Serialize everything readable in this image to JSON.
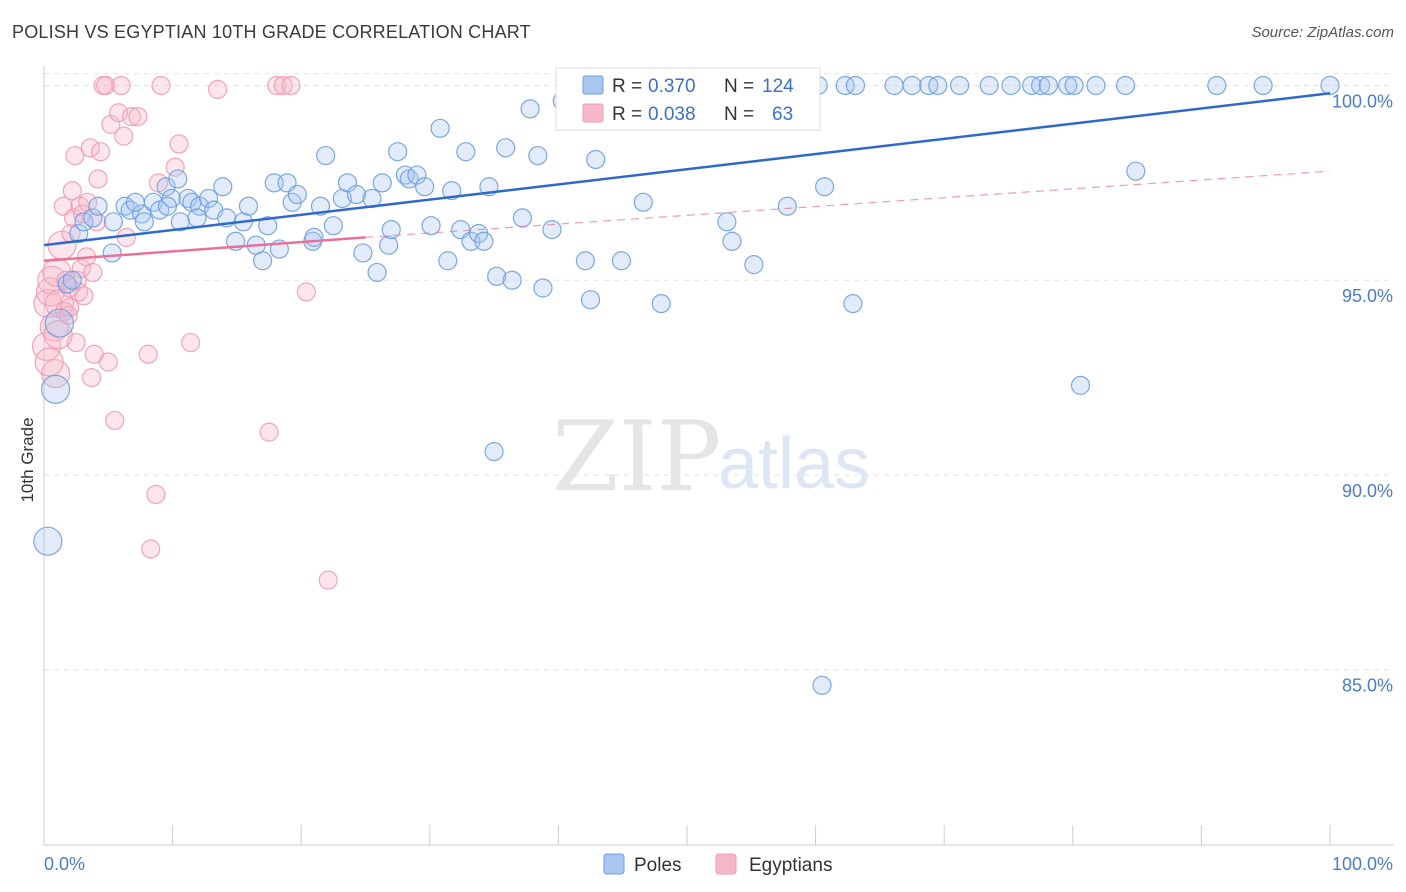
{
  "title": "POLISH VS EGYPTIAN 10TH GRADE CORRELATION CHART",
  "source": "Source: ZipAtlas.com",
  "watermark": {
    "zip": "ZIP",
    "atlas": "atlas"
  },
  "legend": {
    "rows": [
      {
        "r_label": "R =",
        "r_value": "0.370",
        "n_label": "N =",
        "n_value": "124",
        "color": "#a9c6f0"
      },
      {
        "r_label": "R =",
        "r_value": "0.038",
        "n_label": "N =",
        "n_value": "63",
        "color": "#f6b8c9"
      }
    ]
  },
  "bottom_legend": [
    {
      "label": "Poles",
      "color": "#a9c6f0"
    },
    {
      "label": "Egyptians",
      "color": "#f6b8c9"
    }
  ],
  "chart_data": {
    "type": "scatter",
    "title": "POLISH VS EGYPTIAN 10TH GRADE CORRELATION CHART",
    "xlabel": "",
    "ylabel": "10th Grade",
    "xlim": [
      0,
      100
    ],
    "ylim": [
      80.5,
      100.5
    ],
    "x_tick_labels": [
      "0.0%",
      "100.0%"
    ],
    "y_ticks": [
      85,
      90,
      95,
      100
    ],
    "y_tick_labels": [
      "85.0%",
      "90.0%",
      "95.0%",
      "100.0%"
    ],
    "grid": true,
    "series": [
      {
        "name": "Poles",
        "color": "#6f9fe0",
        "trend": {
          "x": [
            0,
            100
          ],
          "y": [
            95.9,
            99.8
          ],
          "color": "#2d6ac9"
        },
        "points": [
          [
            0.3,
            88.3
          ],
          [
            0.9,
            92.2
          ],
          [
            1.2,
            93.9
          ],
          [
            1.8,
            94.9
          ],
          [
            2.2,
            95.0
          ],
          [
            2.7,
            96.2
          ],
          [
            3.1,
            96.5
          ],
          [
            3.8,
            96.6
          ],
          [
            4.2,
            96.9
          ],
          [
            5.4,
            96.5
          ],
          [
            5.3,
            95.7
          ],
          [
            6.3,
            96.9
          ],
          [
            6.7,
            96.8
          ],
          [
            7.6,
            96.7
          ],
          [
            7.8,
            96.5
          ],
          [
            8.5,
            97.0
          ],
          [
            9.0,
            96.8
          ],
          [
            9.5,
            97.4
          ],
          [
            9.9,
            97.1
          ],
          [
            10.4,
            97.6
          ],
          [
            10.6,
            96.5
          ],
          [
            11.2,
            97.1
          ],
          [
            11.5,
            97.0
          ],
          [
            12.1,
            96.9
          ],
          [
            12.8,
            97.1
          ],
          [
            13.2,
            96.8
          ],
          [
            13.9,
            97.4
          ],
          [
            14.2,
            96.6
          ],
          [
            14.9,
            96.0
          ],
          [
            15.5,
            96.5
          ],
          [
            15.9,
            96.9
          ],
          [
            16.5,
            95.9
          ],
          [
            17.0,
            95.5
          ],
          [
            17.4,
            96.4
          ],
          [
            17.9,
            97.5
          ],
          [
            18.3,
            95.8
          ],
          [
            18.9,
            97.5
          ],
          [
            19.3,
            97.0
          ],
          [
            19.7,
            97.2
          ],
          [
            20.9,
            96.0
          ],
          [
            21.5,
            96.9
          ],
          [
            21.9,
            98.2
          ],
          [
            22.5,
            96.4
          ],
          [
            23.2,
            97.1
          ],
          [
            23.6,
            97.5
          ],
          [
            24.3,
            97.2
          ],
          [
            24.8,
            95.7
          ],
          [
            25.5,
            97.1
          ],
          [
            25.9,
            95.2
          ],
          [
            26.3,
            97.5
          ],
          [
            26.8,
            95.9
          ],
          [
            27.5,
            98.3
          ],
          [
            28.1,
            97.7
          ],
          [
            28.4,
            97.6
          ],
          [
            29.0,
            97.7
          ],
          [
            29.6,
            97.4
          ],
          [
            30.1,
            96.4
          ],
          [
            30.8,
            98.9
          ],
          [
            31.4,
            95.5
          ],
          [
            31.7,
            97.3
          ],
          [
            32.4,
            96.3
          ],
          [
            32.8,
            98.3
          ],
          [
            33.2,
            96.0
          ],
          [
            33.8,
            96.2
          ],
          [
            34.2,
            96.0
          ],
          [
            34.6,
            97.4
          ],
          [
            35.2,
            95.1
          ],
          [
            35.9,
            98.4
          ],
          [
            36.4,
            95.0
          ],
          [
            37.2,
            96.6
          ],
          [
            37.8,
            99.4
          ],
          [
            38.4,
            98.2
          ],
          [
            38.8,
            94.8
          ],
          [
            39.5,
            96.3
          ],
          [
            40.3,
            99.6
          ],
          [
            41.5,
            100.0
          ],
          [
            42.1,
            95.5
          ],
          [
            42.5,
            94.5
          ],
          [
            42.9,
            98.1
          ],
          [
            43.5,
            100.0
          ],
          [
            44.9,
            95.5
          ],
          [
            46.1,
            100.0
          ],
          [
            46.6,
            97.0
          ],
          [
            48.0,
            94.4
          ],
          [
            48.4,
            100.0
          ],
          [
            49.1,
            100.0
          ],
          [
            51.7,
            100.0
          ],
          [
            53.1,
            96.5
          ],
          [
            53.5,
            96.0
          ],
          [
            54.5,
            100.0
          ],
          [
            55.2,
            95.4
          ],
          [
            55.9,
            100.0
          ],
          [
            57.2,
            100.0
          ],
          [
            57.8,
            96.9
          ],
          [
            58.8,
            99.1
          ],
          [
            59.4,
            100.0
          ],
          [
            60.2,
            100.0
          ],
          [
            60.7,
            97.4
          ],
          [
            62.3,
            100.0
          ],
          [
            62.9,
            94.4
          ],
          [
            63.1,
            100.0
          ],
          [
            66.1,
            100.0
          ],
          [
            67.5,
            100.0
          ],
          [
            68.8,
            100.0
          ],
          [
            69.5,
            100.0
          ],
          [
            71.2,
            100.0
          ],
          [
            73.5,
            100.0
          ],
          [
            75.2,
            100.0
          ],
          [
            76.8,
            100.0
          ],
          [
            77.5,
            100.0
          ],
          [
            78.1,
            100.0
          ],
          [
            79.6,
            100.0
          ],
          [
            80.1,
            100.0
          ],
          [
            80.6,
            92.3
          ],
          [
            81.8,
            100.0
          ],
          [
            84.1,
            100.0
          ],
          [
            84.9,
            97.8
          ],
          [
            91.2,
            100.0
          ],
          [
            94.8,
            100.0
          ],
          [
            100.0,
            100.0
          ],
          [
            35.0,
            90.6
          ],
          [
            60.5,
            84.6
          ],
          [
            21.0,
            96.1
          ],
          [
            11.9,
            96.6
          ],
          [
            9.6,
            96.9
          ],
          [
            27.0,
            96.3
          ],
          [
            7.1,
            97.0
          ]
        ]
      },
      {
        "name": "Egyptians",
        "color": "#f19ab4",
        "trend": {
          "x": [
            0,
            25
          ],
          "y": [
            95.5,
            96.1
          ],
          "dash_to": [
            100,
            97.8
          ],
          "color": "#e8709a"
        },
        "points": [
          [
            0.2,
            93.3
          ],
          [
            0.3,
            94.4
          ],
          [
            0.5,
            94.7
          ],
          [
            0.6,
            95.0
          ],
          [
            0.8,
            93.8
          ],
          [
            0.9,
            92.6
          ],
          [
            1.0,
            95.2
          ],
          [
            1.2,
            94.4
          ],
          [
            1.4,
            95.9
          ],
          [
            1.5,
            96.9
          ],
          [
            1.6,
            94.2
          ],
          [
            1.7,
            95.0
          ],
          [
            1.9,
            94.1
          ],
          [
            2.0,
            94.3
          ],
          [
            2.1,
            96.2
          ],
          [
            2.2,
            97.3
          ],
          [
            2.3,
            96.6
          ],
          [
            2.4,
            98.2
          ],
          [
            2.5,
            93.4
          ],
          [
            2.6,
            95.0
          ],
          [
            2.7,
            94.7
          ],
          [
            2.8,
            96.9
          ],
          [
            2.9,
            95.3
          ],
          [
            3.0,
            96.7
          ],
          [
            3.1,
            94.6
          ],
          [
            3.3,
            95.6
          ],
          [
            3.4,
            97.0
          ],
          [
            3.6,
            98.4
          ],
          [
            3.7,
            92.5
          ],
          [
            3.8,
            95.2
          ],
          [
            3.9,
            93.1
          ],
          [
            4.1,
            96.5
          ],
          [
            4.2,
            97.6
          ],
          [
            4.4,
            98.3
          ],
          [
            4.6,
            100.0
          ],
          [
            4.8,
            100.0
          ],
          [
            5.0,
            92.9
          ],
          [
            5.2,
            99.0
          ],
          [
            5.5,
            91.4
          ],
          [
            5.8,
            99.3
          ],
          [
            6.0,
            100.0
          ],
          [
            6.2,
            98.7
          ],
          [
            6.4,
            96.1
          ],
          [
            6.8,
            99.2
          ],
          [
            7.3,
            99.2
          ],
          [
            8.1,
            93.1
          ],
          [
            8.3,
            88.1
          ],
          [
            8.7,
            89.5
          ],
          [
            8.9,
            97.5
          ],
          [
            9.1,
            100.0
          ],
          [
            10.2,
            97.9
          ],
          [
            10.5,
            98.5
          ],
          [
            11.4,
            93.4
          ],
          [
            13.5,
            99.9
          ],
          [
            17.5,
            91.1
          ],
          [
            18.1,
            100.0
          ],
          [
            18.6,
            100.0
          ],
          [
            19.2,
            100.0
          ],
          [
            20.4,
            94.7
          ],
          [
            22.1,
            87.3
          ],
          [
            1.1,
            93.6
          ],
          [
            0.4,
            92.9
          ],
          [
            2.0,
            94.8
          ]
        ]
      }
    ]
  }
}
